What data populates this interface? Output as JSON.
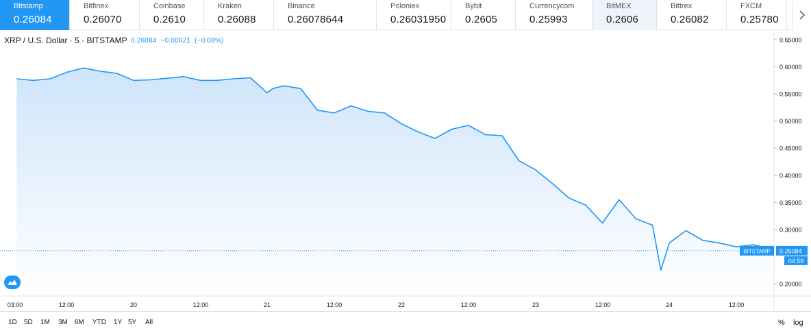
{
  "tickers": [
    {
      "name": "Bitstamp",
      "price": "0.26084",
      "state": "active"
    },
    {
      "name": "Bitfinex",
      "price": "0.26070",
      "state": "normal"
    },
    {
      "name": "Coinbase",
      "price": "0.2610",
      "state": "normal"
    },
    {
      "name": "Kraken",
      "price": "0.26088",
      "state": "normal"
    },
    {
      "name": "Binance",
      "price": "0.26078644",
      "state": "normal"
    },
    {
      "name": "Poloniex",
      "price": "0.26031950",
      "state": "normal"
    },
    {
      "name": "Bybit",
      "price": "0.2605",
      "state": "normal"
    },
    {
      "name": "Currencycom",
      "price": "0.25993",
      "state": "normal"
    },
    {
      "name": "BitMEX",
      "price": "0.2606",
      "state": "hover"
    },
    {
      "name": "Bittrex",
      "price": "0.26082",
      "state": "normal"
    },
    {
      "name": "FXCM",
      "price": "0.25780",
      "state": "normal"
    }
  ],
  "next_icon": "chevron-right-icon",
  "chart_header": {
    "symbol": "XRP / U.S. Dollar · 5 · BITSTAMP",
    "last": "0.26084",
    "change": "−0.00021",
    "change_pct": "(−0.08%)"
  },
  "chart_data": {
    "type": "area",
    "title": "XRP / U.S. Dollar · 5 · BITSTAMP",
    "xlabel": "",
    "ylabel": "",
    "x_ticks": [
      "03:00",
      "12:00",
      "20",
      "12:00",
      "21",
      "12:00",
      "22",
      "12:00",
      "23",
      "12:00",
      "24",
      "12:00"
    ],
    "y_ticks": [
      "0.65000",
      "0.60000",
      "0.55000",
      "0.50000",
      "0.45000",
      "0.40000",
      "0.35000",
      "0.30000",
      "0.20000"
    ],
    "ylim": [
      0.19,
      0.66
    ],
    "grid": false,
    "series": [
      {
        "x": [
          "19 03:00",
          "19 06:00",
          "19 09:00",
          "19 12:00",
          "19 15:00",
          "19 18:00",
          "19 21:00",
          "20 00:00",
          "20 03:00",
          "20 06:00",
          "20 09:00",
          "20 12:00",
          "20 15:00",
          "20 18:00",
          "20 21:00",
          "21 00:00",
          "21 01:00",
          "21 03:00",
          "21 06:00",
          "21 09:00",
          "21 12:00",
          "21 15:00",
          "21 18:00",
          "21 21:00",
          "22 00:00",
          "22 03:00",
          "22 06:00",
          "22 09:00",
          "22 12:00",
          "22 15:00",
          "22 18:00",
          "22 21:00",
          "23 00:00",
          "23 03:00",
          "23 06:00",
          "23 09:00",
          "23 12:00",
          "23 15:00",
          "23 18:00",
          "23 21:00",
          "23 22:30",
          "24 00:00",
          "24 03:00",
          "24 06:00",
          "24 09:00",
          "24 12:00",
          "24 15:00",
          "24 18:00"
        ],
        "y": [
          0.578,
          0.575,
          0.578,
          0.59,
          0.598,
          0.592,
          0.588,
          0.575,
          0.576,
          0.579,
          0.582,
          0.575,
          0.575,
          0.578,
          0.58,
          0.552,
          0.56,
          0.565,
          0.56,
          0.52,
          0.515,
          0.528,
          0.518,
          0.515,
          0.495,
          0.48,
          0.468,
          0.485,
          0.492,
          0.475,
          0.473,
          0.427,
          0.41,
          0.385,
          0.358,
          0.345,
          0.312,
          0.355,
          0.32,
          0.308,
          0.225,
          0.275,
          0.298,
          0.28,
          0.275,
          0.268,
          0.272,
          0.265
        ]
      }
    ],
    "last_value_label": "BITSTAMP",
    "last_value": "0.26084",
    "countdown": "04:59",
    "colors": {
      "line": "#2196f3",
      "fill_top": "#cfe5fb",
      "fill_bottom": "#ffffff",
      "axis_text": "#131722"
    }
  },
  "range_buttons": [
    "1D",
    "5D",
    "1M",
    "3M",
    "6M",
    "YTD",
    "1Y",
    "5Y",
    "All"
  ],
  "options": {
    "percent": "%",
    "log": "log"
  },
  "logo_icon": "tradingview-logo-icon"
}
